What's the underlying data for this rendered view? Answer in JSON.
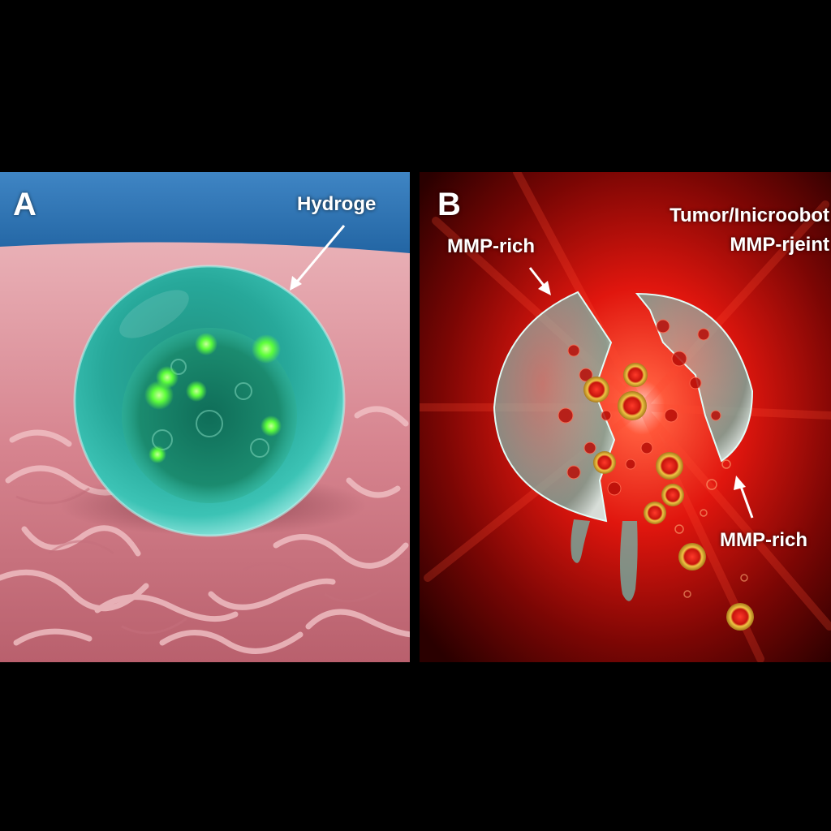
{
  "panel_a": {
    "letter": "A",
    "label": "Hydroge"
  },
  "panel_b": {
    "letter": "B",
    "title_line1": "Tumor/Inicroobot",
    "title_line2": "MMP-rjeint",
    "label_left": "MMP-rich",
    "label_right": "MMP-rich"
  },
  "colors": {
    "background": "#000000",
    "panel_a_sky": "#2a6fb0",
    "panel_a_tissue": "#d8848e",
    "hydrogel_sphere": "#2fb5a8",
    "fluorescent_dots": "#5dff3a",
    "panel_b_glow": "#ff2a1a",
    "nanoparticle_ring": "#e2b530"
  }
}
